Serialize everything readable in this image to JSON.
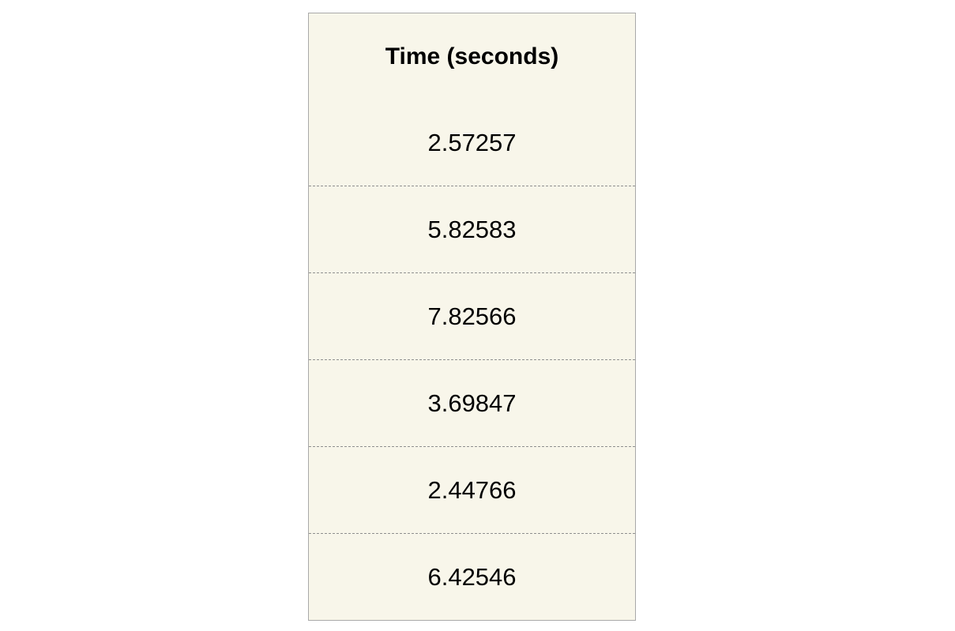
{
  "chart_data": {
    "type": "table",
    "columns": [
      "Time (seconds)"
    ],
    "rows": [
      [
        "2.57257"
      ],
      [
        "5.82583"
      ],
      [
        "7.82566"
      ],
      [
        "3.69847"
      ],
      [
        "2.44766"
      ],
      [
        "6.42546"
      ]
    ]
  }
}
